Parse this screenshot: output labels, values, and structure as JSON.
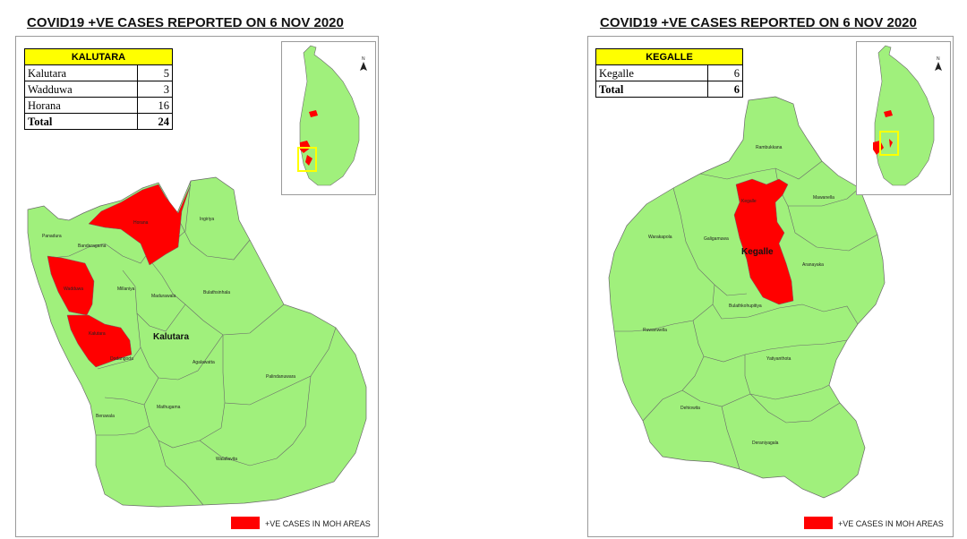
{
  "colors": {
    "land": "#a0f07c",
    "cases": "#ff0000",
    "header": "#ffff00",
    "inset_box": "#ffff00"
  },
  "left": {
    "title": "COVID19 +VE CASES REPORTED ON 6 NOV 2020",
    "table": {
      "header": "KALUTARA",
      "rows": [
        {
          "area": "Kalutara",
          "cases": "5"
        },
        {
          "area": "Wadduwa",
          "cases": "3"
        },
        {
          "area": "Horana",
          "cases": "16"
        }
      ],
      "total_label": "Total",
      "total_value": "24"
    },
    "district_label": "Kalutara",
    "moh_labels": [
      "Panadura",
      "Bandaragama",
      "Horana",
      "Ingiriya",
      "Wadduwa",
      "Millaniya",
      "Madurawala",
      "Bulathsinhala",
      "Kalutara",
      "Dodangoda",
      "Agalawatta",
      "Palindanuwara",
      "Beruwala",
      "Mathugama",
      "Walallavita"
    ],
    "legend": "+VE CASES IN MOH AREAS",
    "inset_icon": "north-arrow-icon"
  },
  "right": {
    "title": "COVID19 +VE CASES REPORTED ON 6 NOV 2020",
    "table": {
      "header": "KEGALLE",
      "rows": [
        {
          "area": "Kegalle",
          "cases": "6"
        }
      ],
      "total_label": "Total",
      "total_value": "6"
    },
    "district_label": "Kegalle",
    "moh_labels": [
      "Rambukkana",
      "Kegalle",
      "Mawanella",
      "Warakapola",
      "Galigamuwa",
      "Aranayaka",
      "Bulathkohupitiya",
      "Ruwanwella",
      "Yatiyanthota",
      "Dehiowita",
      "Deraniyagala"
    ],
    "legend": "+VE CASES IN MOH AREAS",
    "inset_icon": "north-arrow-icon"
  }
}
